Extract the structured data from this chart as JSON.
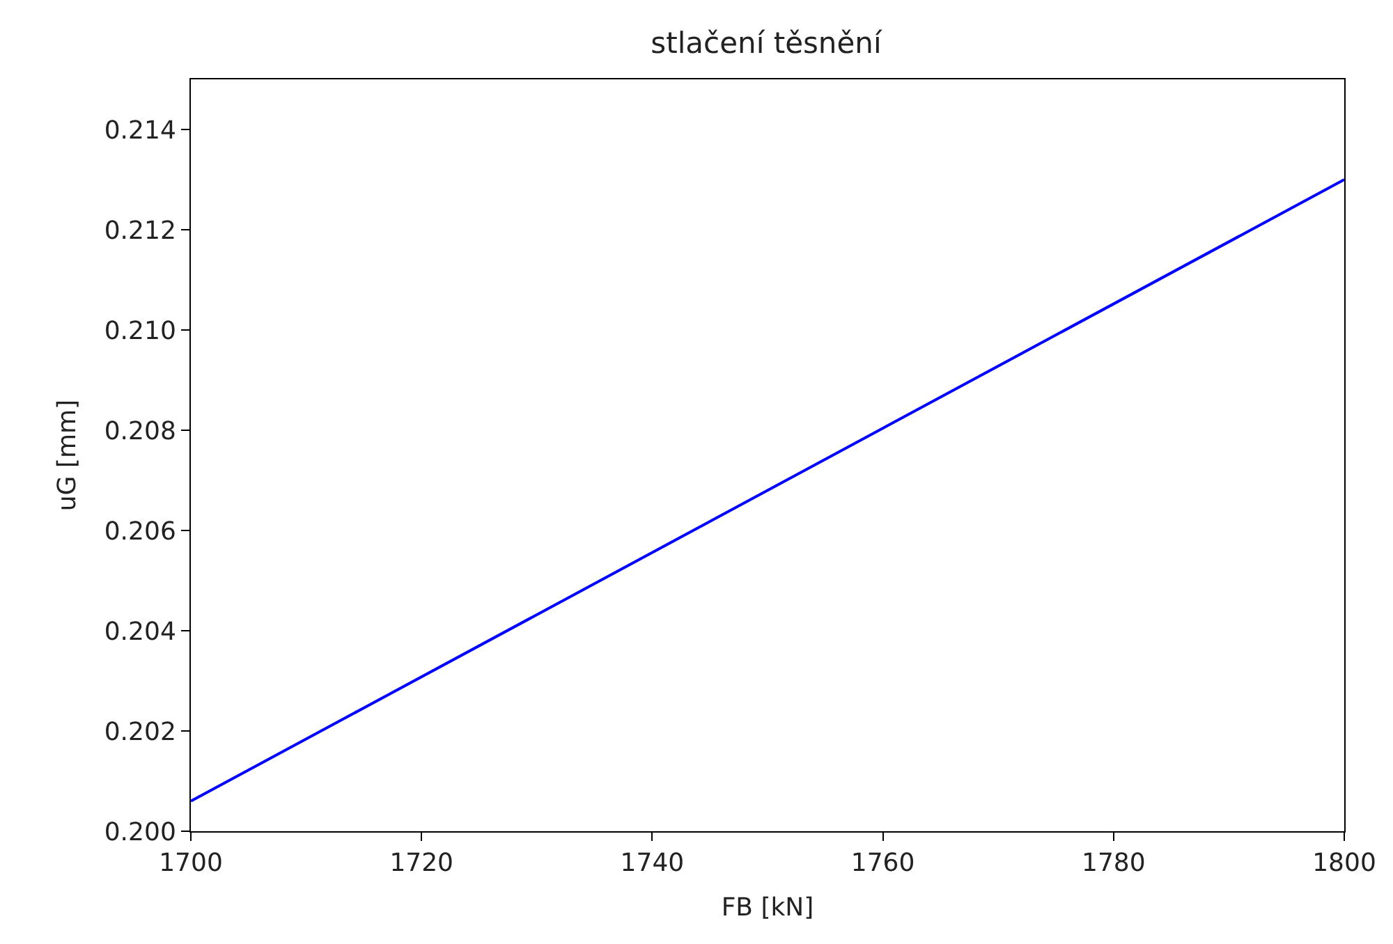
{
  "chart_data": {
    "type": "line",
    "title": "stlačení těsnění",
    "xlabel": "FB [kN]",
    "ylabel": "uG [mm]",
    "x": [
      1700,
      1800
    ],
    "series": [
      {
        "color": "#0000ff",
        "values": [
          0.2006,
          0.213
        ]
      }
    ],
    "xlim": [
      1700,
      1800
    ],
    "xticks": [
      1700,
      1720,
      1740,
      1760,
      1780,
      1800
    ],
    "ylim": [
      0.2,
      0.215
    ],
    "yticks": [
      {
        "value": 0.2,
        "label": "0.200"
      },
      0.202,
      0.204,
      0.206,
      0.208,
      {
        "value": 0.21,
        "label": "0.210"
      },
      0.212,
      0.214
    ],
    "marker": "none",
    "line_style": "solid"
  }
}
